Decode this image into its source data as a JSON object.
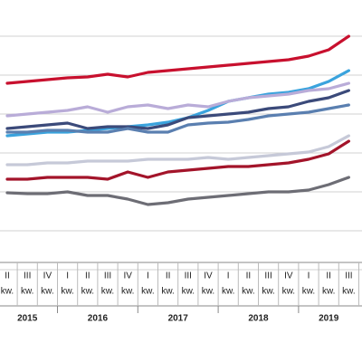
{
  "chart_data": {
    "type": "line",
    "categories": [
      "II",
      "III",
      "IV",
      "I",
      "II",
      "III",
      "IV",
      "I",
      "II",
      "III",
      "IV",
      "I",
      "II",
      "III",
      "IV",
      "I",
      "II",
      "III"
    ],
    "category_suffix": "kw.",
    "years": [
      2015,
      2016,
      2017,
      2018,
      2019
    ],
    "highlight_color": "#c8102e",
    "ylim": [
      0,
      298
    ],
    "yticks": [
      0,
      43,
      86,
      129,
      172,
      215,
      258
    ],
    "grid": true,
    "series": [
      {
        "color": "#c8102e",
        "values": [
          206,
          208,
          210,
          212,
          213,
          216,
          213,
          218,
          220,
          222,
          224,
          226,
          228,
          230,
          232,
          236,
          243,
          258
        ]
      },
      {
        "color": "#3aa3dd",
        "values": [
          148,
          150,
          152,
          152,
          154,
          156,
          158,
          160,
          163,
          168,
          176,
          186,
          190,
          194,
          196,
          200,
          208,
          220
        ]
      },
      {
        "color": "#b9acd8",
        "values": [
          170,
          172,
          174,
          176,
          180,
          174,
          180,
          182,
          178,
          182,
          180,
          186,
          190,
          192,
          194,
          198,
          200,
          206
        ]
      },
      {
        "color": "#3b4a7a",
        "values": [
          156,
          158,
          160,
          162,
          156,
          158,
          158,
          156,
          160,
          168,
          170,
          172,
          174,
          178,
          180,
          186,
          190,
          198
        ]
      },
      {
        "color": "#5a7fb0",
        "values": [
          152,
          152,
          154,
          154,
          152,
          152,
          156,
          152,
          152,
          160,
          162,
          163,
          166,
          170,
          172,
          174,
          178,
          182
        ]
      },
      {
        "color": "#c6c9d8",
        "values": [
          116,
          116,
          118,
          118,
          120,
          120,
          120,
          122,
          122,
          122,
          124,
          122,
          124,
          126,
          128,
          130,
          136,
          148
        ]
      },
      {
        "color": "#a3142a",
        "values": [
          100,
          100,
          102,
          102,
          102,
          100,
          108,
          102,
          108,
          110,
          112,
          114,
          114,
          116,
          118,
          122,
          128,
          142
        ]
      },
      {
        "color": "#6d6d75",
        "values": [
          85,
          84,
          84,
          86,
          82,
          82,
          78,
          72,
          74,
          78,
          80,
          82,
          84,
          86,
          86,
          88,
          94,
          102
        ]
      }
    ]
  }
}
